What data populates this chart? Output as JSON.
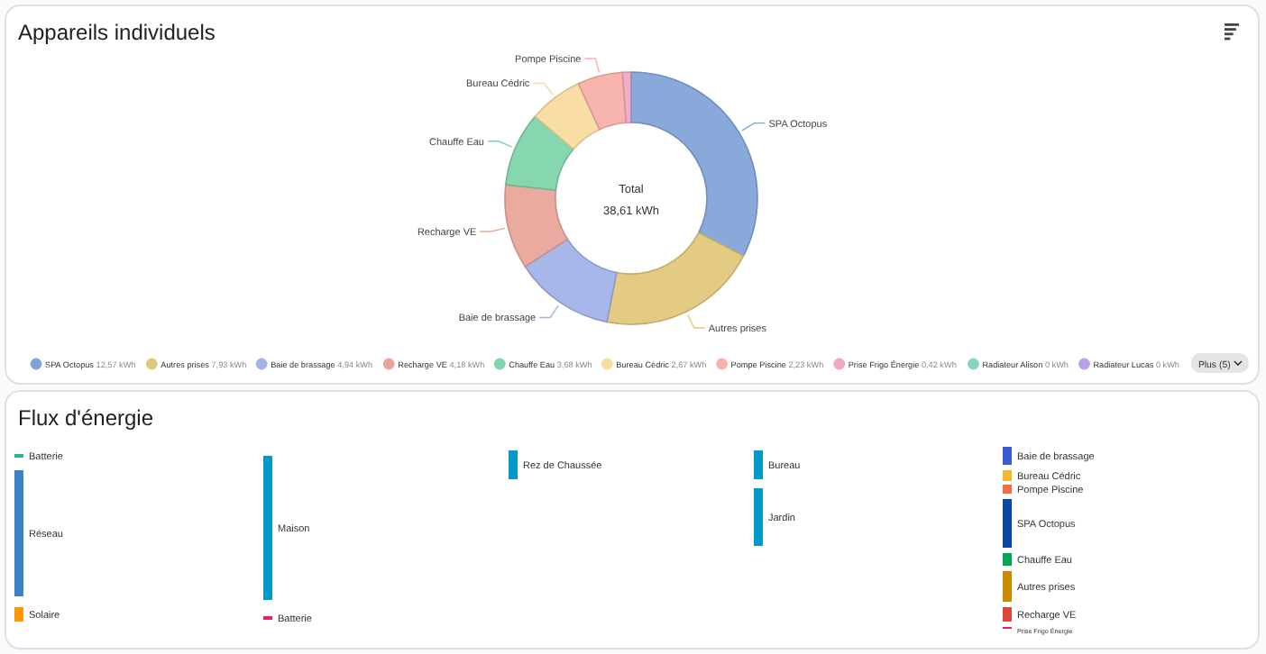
{
  "chart_data": [
    {
      "type": "donut",
      "title": "Appareils individuels",
      "categories": [
        "SPA Octopus",
        "Autres prises",
        "Baie de brassage",
        "Recharge VE",
        "Chauffe Eau",
        "Bureau Cédric",
        "Pompe Piscine",
        "Prise Frigo Énergie",
        "Radiateur Alison",
        "Radiateur Lucas"
      ],
      "values": [
        12.57,
        7.93,
        4.94,
        4.18,
        3.68,
        2.67,
        2.23,
        0.42,
        0,
        0
      ],
      "value_labels": [
        "12,57 kWh",
        "7,93 kWh",
        "4,94 kWh",
        "4,18 kWh",
        "3,68 kWh",
        "2,67 kWh",
        "2,23 kWh",
        "0,42 kWh",
        "0 kWh",
        "0 kWh"
      ],
      "colors": [
        "#82a4d8",
        "#e2c87c",
        "#a3b3e8",
        "#e9a59b",
        "#80d4ab",
        "#f8dca0",
        "#f8b1a9",
        "#f2a9c2",
        "#86d4c0",
        "#b9a0e8"
      ],
      "legend": "bottom",
      "annotations": [
        "Total",
        "38,61 kWh",
        "Plus (5)"
      ]
    },
    {
      "type": "other",
      "title": "Flux d'énergie",
      "annotations": [
        "Batterie",
        "Réseau",
        "Solaire",
        "Maison",
        "Batterie",
        "Rez de Chaussée",
        "Bureau",
        "Jardin",
        "Baie de brassage",
        "Bureau Cédric",
        "Pompe Piscine",
        "SPA Octopus",
        "Chauffe Eau",
        "Autres prises",
        "Recharge VE",
        "Prise Frigo Énergie"
      ]
    }
  ]
}
